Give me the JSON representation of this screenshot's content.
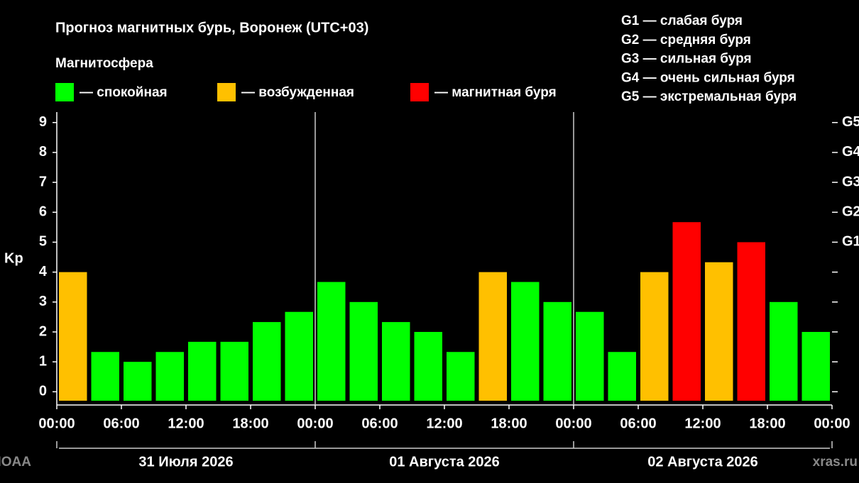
{
  "chart_data": {
    "type": "bar",
    "title": "Прогноз магнитных бурь, Воронеж (UTC+03)",
    "legend_title": "Магнитосфера",
    "legend": [
      {
        "label": "— спокойная",
        "color": "#00ff00"
      },
      {
        "label": "— возбужденная",
        "color": "#ffc000"
      },
      {
        "label": "— магнитная буря",
        "color": "#ff0000"
      }
    ],
    "storm_scale": [
      "G1 — слабая буря",
      "G2 — средняя буря",
      "G3 — сильная буря",
      "G4 — очень сильная буря",
      "G5 — экстремальная буря"
    ],
    "ylabel": "Kp",
    "x": [
      0,
      3,
      6,
      9,
      12,
      15,
      18,
      21,
      24,
      27,
      30,
      33,
      36,
      39,
      42,
      45,
      48,
      51,
      54,
      57,
      60,
      63,
      66,
      69
    ],
    "values": [
      4.0,
      1.33,
      1.0,
      1.33,
      1.67,
      1.67,
      2.33,
      2.67,
      3.67,
      3.0,
      2.33,
      2.0,
      1.33,
      4.0,
      3.67,
      3.0,
      2.67,
      1.33,
      4.0,
      5.67,
      4.33,
      5.0,
      3.0,
      2.0
    ],
    "colors": [
      "#ffc000",
      "#00ff00",
      "#00ff00",
      "#00ff00",
      "#00ff00",
      "#00ff00",
      "#00ff00",
      "#00ff00",
      "#00ff00",
      "#00ff00",
      "#00ff00",
      "#00ff00",
      "#00ff00",
      "#ffc000",
      "#00ff00",
      "#00ff00",
      "#00ff00",
      "#00ff00",
      "#ffc000",
      "#ff0000",
      "#ffc000",
      "#ff0000",
      "#00ff00",
      "#00ff00"
    ],
    "xlim": [
      0,
      72
    ],
    "xticks": [
      {
        "value": 0,
        "label": "00:00"
      },
      {
        "value": 6,
        "label": "06:00"
      },
      {
        "value": 12,
        "label": "12:00"
      },
      {
        "value": 18,
        "label": "18:00"
      },
      {
        "value": 24,
        "label": "00:00"
      },
      {
        "value": 30,
        "label": "06:00"
      },
      {
        "value": 36,
        "label": "12:00"
      },
      {
        "value": 42,
        "label": "18:00"
      },
      {
        "value": 48,
        "label": "00:00"
      },
      {
        "value": 54,
        "label": "06:00"
      },
      {
        "value": 60,
        "label": "12:00"
      },
      {
        "value": 66,
        "label": "18:00"
      },
      {
        "value": 72,
        "label": "00:00"
      }
    ],
    "ylim": [
      -0.3,
      9.35
    ],
    "yticks": [
      0,
      1,
      2,
      3,
      4,
      5,
      6,
      7,
      8,
      9
    ],
    "y2lim": [
      -0.3,
      9.35
    ],
    "y2ticks": [
      {
        "value": 5,
        "label": "G1"
      },
      {
        "value": 6,
        "label": "G2"
      },
      {
        "value": 7,
        "label": "G3"
      },
      {
        "value": 8,
        "label": "G4"
      },
      {
        "value": 9,
        "label": "G5"
      }
    ],
    "day_labels": [
      "31 Июля 2026",
      "01 Августа 2026",
      "02 Августа 2026"
    ],
    "watermarks": [
      "NOAA",
      "xras.ru"
    ]
  }
}
